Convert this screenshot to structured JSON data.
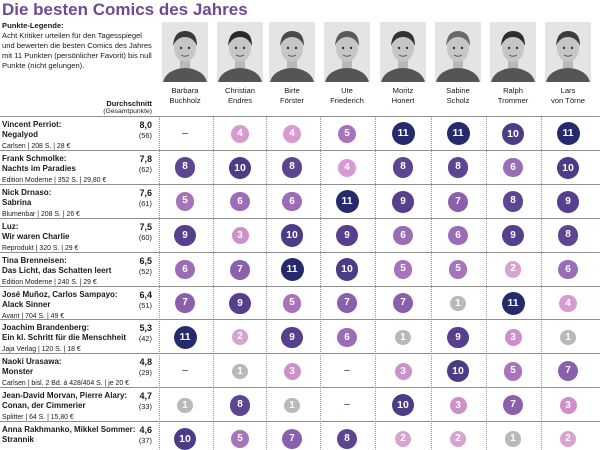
{
  "title": "Die besten Comics des Jahres",
  "legend": {
    "heading": "Punkte-Legende:",
    "text": "Acht Kritiker urteilen für den Tagesspiegel und bewerten die besten Comics des Jahres mit 11 Punkten (persönlicher Favorit) bis null Punkte (nicht gelungen)."
  },
  "average_header": "Durchschnitt",
  "average_subheader": "(Gesamtpunkte)",
  "critics": [
    {
      "first": "Barbara",
      "last": "Buchholz",
      "icon": "critic-photo"
    },
    {
      "first": "Christian",
      "last": "Endres",
      "icon": "critic-photo"
    },
    {
      "first": "Birte",
      "last": "Förster",
      "icon": "critic-photo"
    },
    {
      "first": "Ute",
      "last": "Friederich",
      "icon": "critic-photo"
    },
    {
      "first": "Moritz",
      "last": "Honert",
      "icon": "critic-photo"
    },
    {
      "first": "Sabine",
      "last": "Scholz",
      "icon": "critic-photo"
    },
    {
      "first": "Ralph",
      "last": "Trommer",
      "icon": "critic-photo"
    },
    {
      "first": "Lars",
      "last": "von Törne",
      "icon": "critic-photo"
    }
  ],
  "score_colors": {
    "11": "#252a6c",
    "10": "#4a3d85",
    "9": "#563f8c",
    "8": "#5c4691",
    "7": "#8a5fab",
    "6": "#9a6db6",
    "5": "#a873bb",
    "4": "#d79bd2",
    "3": "#cf8fcb",
    "2": "#d8a3d0",
    "1": "#b9b9b9"
  },
  "dash_label": "–",
  "books": [
    {
      "title1": "Vincent Perriot:",
      "title2": "Negalyod",
      "meta": "Carlsen | 208 S. | 28 €",
      "average": "8,0",
      "total": "(56)",
      "scores": [
        null,
        4,
        4,
        5,
        11,
        11,
        10,
        11
      ]
    },
    {
      "title1": "Frank Schmolke:",
      "title2": "Nachts im Paradies",
      "meta": "Edition Moderne | 352 S. | 29,80 €",
      "average": "7,8",
      "total": "(62)",
      "scores": [
        8,
        10,
        8,
        4,
        8,
        8,
        6,
        10
      ]
    },
    {
      "title1": "Nick Drnaso:",
      "title2": "Sabrina",
      "meta": "Blumenbar | 208 S. | 26 €",
      "average": "7,6",
      "total": "(61)",
      "scores": [
        5,
        6,
        6,
        11,
        9,
        7,
        8,
        9
      ]
    },
    {
      "title1": "Luz:",
      "title2": "Wir waren Charlie",
      "meta": "Reprodukt | 320 S. | 29 €",
      "average": "7,5",
      "total": "(60)",
      "scores": [
        9,
        3,
        10,
        9,
        6,
        6,
        9,
        8
      ]
    },
    {
      "title1": "Tina Brenneisen:",
      "title2": "Das Licht, das Schatten leert",
      "meta": "Edition Moderne | 240 S. | 29 €",
      "average": "6,5",
      "total": "(52)",
      "scores": [
        6,
        7,
        11,
        10,
        5,
        5,
        2,
        6
      ]
    },
    {
      "title1": "José Muñoz, Carlos Sampayo:",
      "title2": "Alack Sinner",
      "meta": "Avant | 704 S. | 49 €",
      "average": "6,4",
      "total": "(51)",
      "scores": [
        7,
        9,
        5,
        7,
        7,
        1,
        11,
        4
      ]
    },
    {
      "title1": "Joachim Brandenberg:",
      "title2": "Ein kl. Schritt für die Menschheit",
      "meta": "Jaja Verlag | 120 S. | 18 €",
      "average": "5,3",
      "total": "(42)",
      "scores": [
        11,
        2,
        9,
        6,
        1,
        9,
        3,
        1
      ]
    },
    {
      "title1": "Naoki Urasawa:",
      "title2": "Monster",
      "meta": "Carlsen | bisl. 2 Bd. à 428/404 S. | je 20 €",
      "average": "4,8",
      "total": "(29)",
      "scores": [
        null,
        1,
        3,
        null,
        3,
        10,
        5,
        7
      ]
    },
    {
      "title1": "Jean-David Morvan, Pierre Alary:",
      "title2": "Conan, der Cimmerier",
      "meta": "Splitter | 64 S. | 15,80 €",
      "average": "4,7",
      "total": "(33)",
      "scores": [
        1,
        8,
        1,
        null,
        10,
        3,
        7,
        3
      ]
    },
    {
      "title1": "Anna Rakhmanko, Mikkel Sommer:",
      "title2": "Strannik",
      "meta": "",
      "average": "4,6",
      "total": "(37)",
      "scores": [
        10,
        5,
        7,
        8,
        2,
        2,
        1,
        2
      ]
    }
  ]
}
